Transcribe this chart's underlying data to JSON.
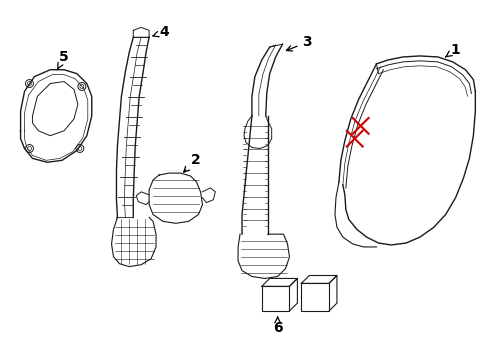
{
  "background_color": "#ffffff",
  "line_color": "#1a1a1a",
  "red_color": "#cc0000",
  "label_fontsize": 10,
  "arrow_color": "#000000",
  "fig_width": 4.89,
  "fig_height": 3.6
}
